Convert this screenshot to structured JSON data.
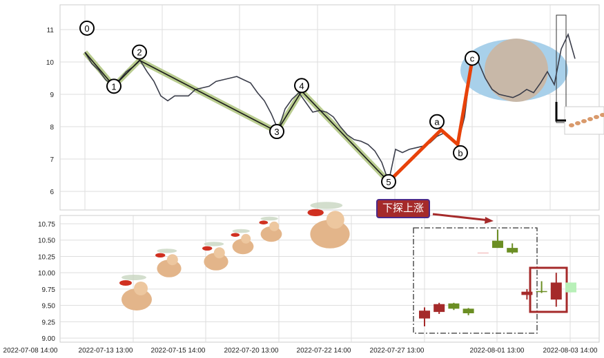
{
  "chart_data": [
    {
      "type": "line",
      "panel": "top",
      "ylim": [
        5.45,
        11.75
      ],
      "yticks": [
        "6",
        "7",
        "8",
        "9",
        "10",
        "11"
      ],
      "grid": true,
      "line_color": "#3a3d4a",
      "values": [
        10.3,
        9.95,
        9.75,
        9.45,
        9.3,
        9.45,
        9.7,
        9.85,
        10.05,
        9.7,
        9.4,
        8.95,
        8.8,
        8.95,
        8.95,
        8.95,
        9.15,
        9.2,
        9.25,
        9.4,
        9.45,
        9.5,
        9.55,
        9.45,
        9.35,
        9.05,
        8.8,
        8.4,
        7.9,
        8.55,
        8.85,
        9.05,
        8.75,
        8.45,
        8.5,
        8.45,
        8.3,
        8.0,
        7.75,
        7.6,
        7.55,
        7.45,
        7.25,
        6.9,
        6.3,
        7.3,
        7.2,
        7.3,
        7.35,
        7.4,
        7.5,
        7.7,
        7.8,
        7.65,
        7.45,
        8.3,
        10.0,
        10.0,
        9.5,
        9.15,
        9.0,
        8.95,
        8.9,
        9.0,
        9.15,
        9.05,
        9.35,
        9.7,
        9.3,
        10.4,
        10.85,
        10.1
      ],
      "zigzag": [
        {
          "label": "0",
          "index": 0,
          "value": 10.3
        },
        {
          "label": "1",
          "index": 4.2,
          "value": 9.25
        },
        {
          "label": "2",
          "index": 7.9,
          "value": 10.05
        },
        {
          "label": "3",
          "index": 27.8,
          "value": 7.85
        },
        {
          "label": "4",
          "index": 31.4,
          "value": 9.1
        },
        {
          "label": "5",
          "index": 44,
          "value": 6.3
        }
      ],
      "projection": [
        {
          "label": "5",
          "index": 44,
          "value": 6.3
        },
        {
          "label": "a",
          "index": 51.6,
          "value": 7.9
        },
        {
          "label": "b",
          "index": 54,
          "value": 7.45
        },
        {
          "label": "c",
          "index": 56.1,
          "value": 10.05
        }
      ],
      "zigzag_color": "#1a1a1a",
      "zigzag_halo_color": "#b9cc8f",
      "projection_color": "#e8420a",
      "ellipse_color": "#a8d0ea",
      "circle_color": "#c8b8a8"
    },
    {
      "type": "candlestick",
      "panel": "bottom",
      "ylim": [
        8.95,
        10.83
      ],
      "yticks": [
        "9.00",
        "9.25",
        "9.50",
        "9.75",
        "10.00",
        "10.25",
        "10.50",
        "10.75"
      ],
      "xticks": [
        "2022-07-08 14:00",
        "2022-07-13 13:00",
        "2022-07-15 14:00",
        "2022-07-20 13:00",
        "2022-07-22 14:00",
        "2022-07-27 13:00",
        "2022-08-01 13:00",
        "2022-08-03 14:00"
      ],
      "grid": true,
      "up_color": "#6b8e23",
      "down_color": "#a52a2a",
      "candles": [
        {
          "open": 9.42,
          "high": 9.47,
          "low": 9.18,
          "close": 9.3,
          "color": "#a52a2a"
        },
        {
          "open": 9.52,
          "high": 9.54,
          "low": 9.37,
          "close": 9.4,
          "color": "#a52a2a"
        },
        {
          "open": 9.45,
          "high": 9.54,
          "low": 9.43,
          "close": 9.53,
          "color": "#6b8e23"
        },
        {
          "open": 9.38,
          "high": 9.46,
          "low": 9.35,
          "close": 9.45,
          "color": "#6b8e23"
        },
        {
          "open": 10.31,
          "high": 10.31,
          "low": 10.31,
          "close": 10.31,
          "color": "#f4c2c2"
        },
        {
          "open": 10.38,
          "high": 10.66,
          "low": 10.38,
          "close": 10.49,
          "color": "#6b8e23"
        },
        {
          "open": 10.31,
          "high": 10.45,
          "low": 10.29,
          "close": 10.38,
          "color": "#6b8e23"
        },
        {
          "open": 9.71,
          "high": 9.75,
          "low": 9.59,
          "close": 9.66,
          "color": "#a52a2a"
        },
        {
          "open": 9.72,
          "high": 9.87,
          "low": 9.69,
          "close": 9.72,
          "color": "#6b8e23"
        },
        {
          "open": 9.85,
          "high": 10.0,
          "low": 9.48,
          "close": 9.59,
          "color": "#a52a2a"
        },
        {
          "open": 9.7,
          "high": 9.85,
          "low": 9.7,
          "close": 9.85,
          "color": "#b8f0b8"
        }
      ],
      "annotation": {
        "text": "下探上涨",
        "bg": "#a52a2a",
        "border": "#4b2a8a"
      }
    }
  ]
}
